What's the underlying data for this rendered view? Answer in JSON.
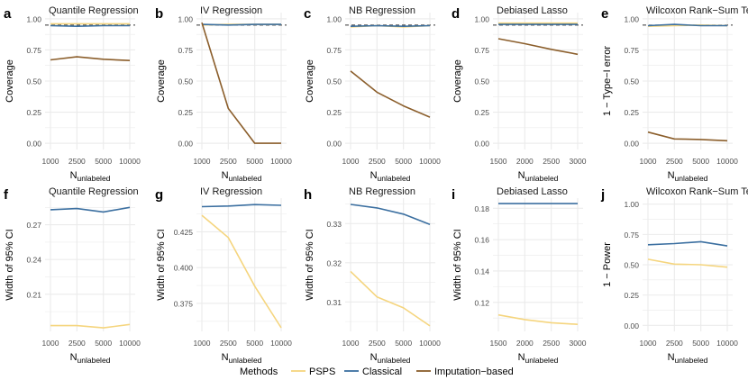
{
  "colors": {
    "PSPS": "#F5D57E",
    "Classical": "#3B6FA0",
    "Imputation-based": "#8B5E2B",
    "grid": "#ebebeb",
    "dashed": "#333333"
  },
  "legend": {
    "title": "Methods",
    "items": [
      "PSPS",
      "Classical",
      "Imputation−based"
    ]
  },
  "chart_data": [
    {
      "panel": "a",
      "title": "Quantile Regression",
      "type": "line",
      "ylabel": "Coverage",
      "xlabel_main": "N",
      "xlabel_sub": "unlabeled",
      "x": [
        "1000",
        "2500",
        "5000",
        "10000"
      ],
      "ylim": [
        -0.05,
        1.05
      ],
      "yticks": [
        "0.00",
        "0.25",
        "0.50",
        "0.75",
        "1.00"
      ],
      "hline": 0.95,
      "series": [
        {
          "name": "PSPS",
          "values": [
            0.96,
            0.96,
            0.96,
            0.96
          ]
        },
        {
          "name": "Classical",
          "values": [
            0.945,
            0.94,
            0.945,
            0.945
          ]
        },
        {
          "name": "Imputation-based",
          "values": [
            0.67,
            0.695,
            0.675,
            0.665
          ]
        }
      ]
    },
    {
      "panel": "b",
      "title": "IV Regression",
      "type": "line",
      "ylabel": "Coverage",
      "xlabel_main": "N",
      "xlabel_sub": "unlabeled",
      "x": [
        "1000",
        "2500",
        "5000",
        "10000"
      ],
      "ylim": [
        -0.05,
        1.05
      ],
      "yticks": [
        "0.00",
        "0.25",
        "0.50",
        "0.75",
        "1.00"
      ],
      "hline": 0.95,
      "series": [
        {
          "name": "PSPS",
          "values": [
            0.95,
            0.955,
            0.955,
            0.955
          ]
        },
        {
          "name": "Classical",
          "values": [
            0.955,
            0.95,
            0.955,
            0.955
          ]
        },
        {
          "name": "Imputation-based",
          "values": [
            0.97,
            0.28,
            0.0,
            0.0
          ]
        }
      ]
    },
    {
      "panel": "c",
      "title": "NB Regression",
      "type": "line",
      "ylabel": "Coverage",
      "xlabel_main": "N",
      "xlabel_sub": "unlabeled",
      "x": [
        "1000",
        "2500",
        "5000",
        "10000"
      ],
      "ylim": [
        -0.05,
        1.05
      ],
      "yticks": [
        "0.00",
        "0.25",
        "0.50",
        "0.75",
        "1.00"
      ],
      "hline": 0.95,
      "series": [
        {
          "name": "PSPS",
          "values": [
            0.935,
            0.945,
            0.935,
            0.945
          ]
        },
        {
          "name": "Classical",
          "values": [
            0.94,
            0.945,
            0.94,
            0.945
          ]
        },
        {
          "name": "Imputation-based",
          "values": [
            0.58,
            0.41,
            0.3,
            0.21
          ]
        }
      ]
    },
    {
      "panel": "d",
      "title": "Debiased Lasso",
      "type": "line",
      "ylabel": "Coverage",
      "xlabel_main": "N",
      "xlabel_sub": "unlabeled",
      "x": [
        "1500",
        "2000",
        "2500",
        "3000"
      ],
      "ylim": [
        -0.05,
        1.05
      ],
      "yticks": [
        "0.00",
        "0.25",
        "0.50",
        "0.75",
        "1.00"
      ],
      "hline": 0.95,
      "series": [
        {
          "name": "PSPS",
          "values": [
            0.965,
            0.965,
            0.965,
            0.965
          ]
        },
        {
          "name": "Classical",
          "values": [
            0.955,
            0.955,
            0.955,
            0.955
          ]
        },
        {
          "name": "Imputation-based",
          "values": [
            0.84,
            0.8,
            0.755,
            0.715
          ]
        }
      ]
    },
    {
      "panel": "e",
      "title": "Wilcoxon Rank−Sum Test",
      "type": "line",
      "ylabel": "1 − Type−I error",
      "xlabel_main": "N",
      "xlabel_sub": "unlabeled",
      "x": [
        "1000",
        "2500",
        "5000",
        "10000"
      ],
      "ylim": [
        -0.05,
        1.05
      ],
      "yticks": [
        "0.00",
        "0.25",
        "0.50",
        "0.75",
        "1.00"
      ],
      "hline": 0.95,
      "series": [
        {
          "name": "PSPS",
          "values": [
            0.94,
            0.945,
            0.95,
            0.945
          ]
        },
        {
          "name": "Classical",
          "values": [
            0.945,
            0.955,
            0.945,
            0.945
          ]
        },
        {
          "name": "Imputation-based",
          "values": [
            0.09,
            0.035,
            0.03,
            0.02
          ]
        }
      ]
    },
    {
      "panel": "f",
      "title": "Quantile Regression",
      "type": "line",
      "ylabel": "Width of 95% CI",
      "xlabel_main": "N",
      "xlabel_sub": "unlabeled",
      "x": [
        "1000",
        "2500",
        "5000",
        "10000"
      ],
      "ylim": [
        0.178,
        0.293
      ],
      "yticks": [
        "0.21",
        "0.24",
        "0.27"
      ],
      "series": [
        {
          "name": "PSPS",
          "values": [
            0.183,
            0.183,
            0.181,
            0.184
          ]
        },
        {
          "name": "Classical",
          "values": [
            0.283,
            0.284,
            0.281,
            0.285
          ]
        }
      ]
    },
    {
      "panel": "g",
      "title": "IV Regression",
      "type": "line",
      "ylabel": "Width of 95% CI",
      "xlabel_main": "N",
      "xlabel_sub": "unlabeled",
      "x": [
        "1000",
        "2500",
        "5000",
        "10000"
      ],
      "ylim": [
        0.3555,
        0.4485
      ],
      "yticks": [
        "0.375",
        "0.400",
        "0.425"
      ],
      "series": [
        {
          "name": "PSPS",
          "values": [
            0.4365,
            0.421,
            0.387,
            0.358
          ]
        },
        {
          "name": "Classical",
          "values": [
            0.4425,
            0.443,
            0.444,
            0.4435
          ]
        }
      ]
    },
    {
      "panel": "h",
      "title": "NB Regression",
      "type": "line",
      "ylabel": "Width of 95% CI",
      "xlabel_main": "N",
      "xlabel_sub": "unlabeled",
      "x": [
        "1000",
        "2500",
        "5000",
        "10000"
      ],
      "ylim": [
        0.3025,
        0.3365
      ],
      "yticks": [
        "0.31",
        "0.32",
        "0.33"
      ],
      "series": [
        {
          "name": "PSPS",
          "values": [
            0.3178,
            0.3113,
            0.3085,
            0.3039
          ]
        },
        {
          "name": "Classical",
          "values": [
            0.3349,
            0.334,
            0.3324,
            0.3298
          ]
        }
      ]
    },
    {
      "panel": "i",
      "title": "Debiased Lasso",
      "type": "line",
      "ylabel": "Width of 95% CI",
      "xlabel_main": "N",
      "xlabel_sub": "unlabeled",
      "x": [
        "1500",
        "2000",
        "2500",
        "3000"
      ],
      "ylim": [
        0.1015,
        0.1865
      ],
      "yticks": [
        "0.12",
        "0.14",
        "0.16",
        "0.18"
      ],
      "series": [
        {
          "name": "PSPS",
          "values": [
            0.112,
            0.109,
            0.107,
            0.106
          ]
        },
        {
          "name": "Classical",
          "values": [
            0.183,
            0.183,
            0.183,
            0.183
          ]
        }
      ]
    },
    {
      "panel": "j",
      "title": "Wilcoxon Rank−Sum Test",
      "type": "line",
      "ylabel": "1 − Power",
      "xlabel_main": "N",
      "xlabel_sub": "unlabeled",
      "x": [
        "1000",
        "2500",
        "5000",
        "10000"
      ],
      "ylim": [
        -0.05,
        1.05
      ],
      "yticks": [
        "0.00",
        "0.25",
        "0.50",
        "0.75",
        "1.00"
      ],
      "series": [
        {
          "name": "PSPS",
          "values": [
            0.545,
            0.505,
            0.5,
            0.48
          ]
        },
        {
          "name": "Classical",
          "values": [
            0.665,
            0.675,
            0.69,
            0.655
          ]
        }
      ]
    }
  ]
}
